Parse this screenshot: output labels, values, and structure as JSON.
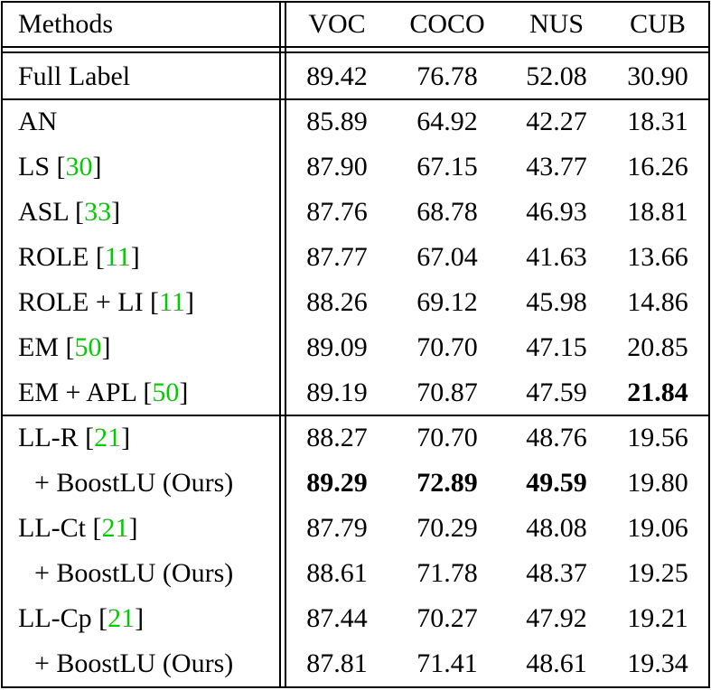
{
  "table": {
    "header": [
      "Methods",
      "VOC",
      "COCO",
      "NUS",
      "CUB"
    ],
    "cite_color": "#00cc00",
    "groups": [
      [
        {
          "method": [
            "Full Label"
          ],
          "values": [
            "89.42",
            "76.78",
            "52.08",
            "30.90"
          ]
        }
      ],
      [
        {
          "method": [
            "AN"
          ],
          "values": [
            "85.89",
            "64.92",
            "42.27",
            "18.31"
          ]
        },
        {
          "method": [
            "LS [",
            "30",
            "]"
          ],
          "values": [
            "87.90",
            "67.15",
            "43.77",
            "16.26"
          ]
        },
        {
          "method": [
            "ASL [",
            "33",
            "]"
          ],
          "values": [
            "87.76",
            "68.78",
            "46.93",
            "18.81"
          ]
        },
        {
          "method": [
            "ROLE [",
            "11",
            "]"
          ],
          "values": [
            "87.77",
            "67.04",
            "41.63",
            "13.66"
          ]
        },
        {
          "method": [
            "ROLE + LI [",
            "11",
            "]"
          ],
          "values": [
            "88.26",
            "69.12",
            "45.98",
            "14.86"
          ]
        },
        {
          "method": [
            "EM [",
            "50",
            "]"
          ],
          "values": [
            "89.09",
            "70.70",
            "47.15",
            "20.85"
          ]
        },
        {
          "method": [
            "EM + APL [",
            "50",
            "]"
          ],
          "values": [
            "89.19",
            "70.87",
            "47.59",
            "21.84"
          ],
          "bold": [
            3
          ]
        }
      ],
      [
        {
          "method": [
            "LL-R [",
            "21",
            "]"
          ],
          "values": [
            "88.27",
            "70.70",
            "48.76",
            "19.56"
          ]
        },
        {
          "method": [
            "+ BoostLU (Ours)"
          ],
          "indent": true,
          "values": [
            "89.29",
            "72.89",
            "49.59",
            "19.80"
          ],
          "bold": [
            0,
            1,
            2
          ]
        },
        {
          "method": [
            "LL-Ct [",
            "21",
            "]"
          ],
          "values": [
            "87.79",
            "70.29",
            "48.08",
            "19.06"
          ]
        },
        {
          "method": [
            "+ BoostLU (Ours)"
          ],
          "indent": true,
          "values": [
            "88.61",
            "71.78",
            "48.37",
            "19.25"
          ]
        },
        {
          "method": [
            "LL-Cp [",
            "21",
            "]"
          ],
          "values": [
            "87.44",
            "70.27",
            "47.92",
            "19.21"
          ]
        },
        {
          "method": [
            "+ BoostLU (Ours)"
          ],
          "indent": true,
          "values": [
            "87.81",
            "71.41",
            "48.61",
            "19.34"
          ]
        }
      ]
    ]
  }
}
